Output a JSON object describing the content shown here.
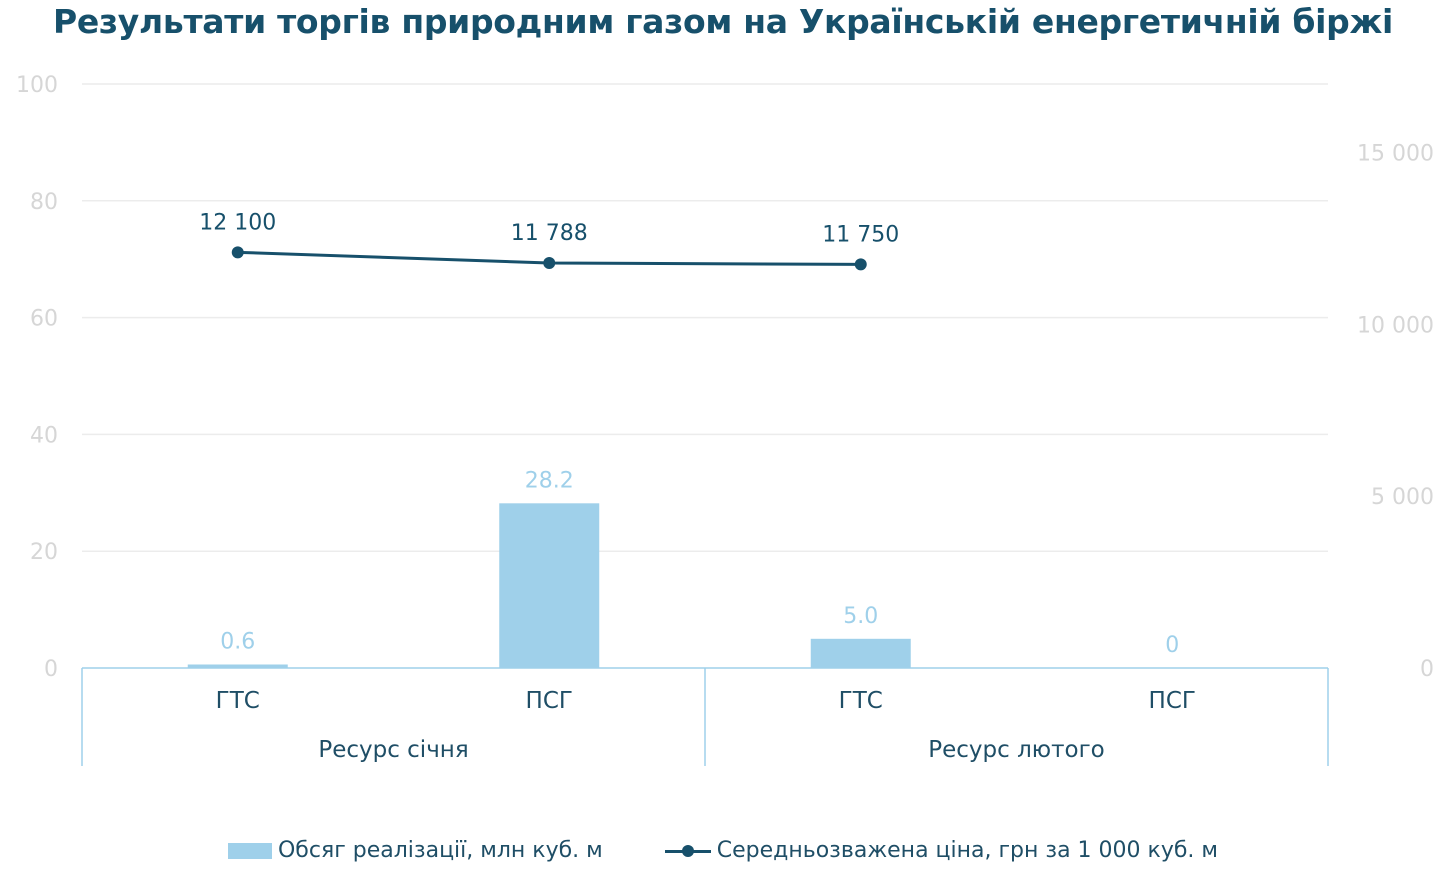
{
  "chart_data": {
    "type": "bar",
    "title": "Результати торгів природним газом на Українській енергетичній біржі",
    "groups": [
      {
        "label": "Ресурс січня",
        "categories": [
          "ГТС",
          "ПСГ"
        ]
      },
      {
        "label": "Ресурс лютого",
        "categories": [
          "ГТС",
          "ПСГ"
        ]
      }
    ],
    "categories": [
      "ГТС",
      "ПСГ",
      "ГТС",
      "ПСГ"
    ],
    "series": [
      {
        "name": "Обсяг реалізації, млн куб. м",
        "type": "bar",
        "axis": "left",
        "values": [
          0.6,
          28.2,
          5.0,
          0
        ],
        "labels": [
          "0.6",
          "28.2",
          "5.0",
          "0"
        ],
        "color": "#9fd0ea"
      },
      {
        "name": "Середньозважена ціна, грн за 1 000 куб. м",
        "type": "line",
        "axis": "right",
        "values": [
          12100,
          11788,
          11750,
          null
        ],
        "labels": [
          "12 100",
          "11 788",
          "11 750",
          ""
        ],
        "color": "#17506b"
      }
    ],
    "y_left": {
      "min": 0,
      "max": 100,
      "ticks": [
        0,
        20,
        40,
        60,
        80,
        100
      ],
      "tick_labels": [
        "0",
        "20",
        "40",
        "60",
        "80",
        "100"
      ]
    },
    "y_right": {
      "min": 0,
      "max": 17000,
      "ticks": [
        0,
        5000,
        10000,
        15000
      ],
      "tick_labels": [
        "0",
        "5 000",
        "10 000",
        "15 000"
      ]
    },
    "grid": true,
    "legend": "bottom"
  }
}
